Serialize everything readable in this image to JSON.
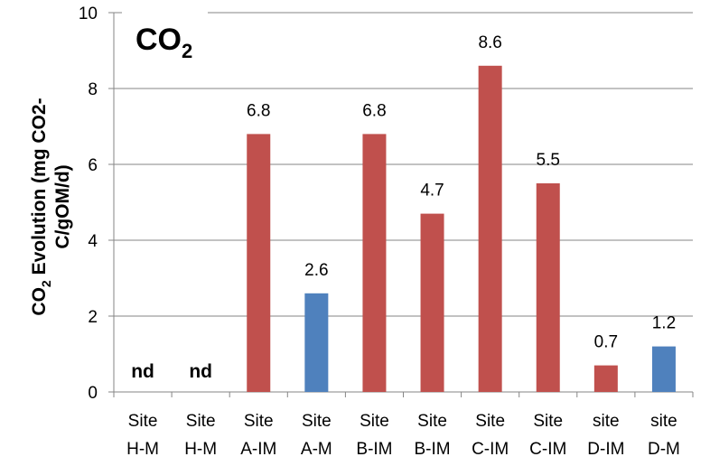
{
  "chart_data": {
    "type": "bar",
    "title": "CO",
    "title_subscript": "2",
    "ylabel_line1_prefix": "CO",
    "ylabel_subscript": "2",
    "ylabel_line1_suffix": " Evolution (mg CO2-",
    "ylabel_line2": "C/gOM/d)",
    "xlabel": "",
    "ylim": [
      0,
      10
    ],
    "yticks": [
      0,
      2,
      4,
      6,
      8,
      10
    ],
    "ytick_labels": [
      "0",
      "2",
      "4",
      "6",
      "8",
      "10"
    ],
    "categories": [
      [
        "Site",
        "H-M"
      ],
      [
        "Site",
        "H-M"
      ],
      [
        "Site",
        "A-IM"
      ],
      [
        "Site",
        "A-M"
      ],
      [
        "Site",
        "B-IM"
      ],
      [
        "Site",
        "B-IM"
      ],
      [
        "Site",
        "C-IM"
      ],
      [
        "Site",
        "C-IM"
      ],
      [
        "site",
        "D-IM"
      ],
      [
        "site",
        "D-M"
      ]
    ],
    "values": [
      null,
      null,
      6.8,
      2.6,
      6.8,
      4.7,
      8.6,
      5.5,
      0.7,
      1.2
    ],
    "data_labels": [
      "nd",
      "nd",
      "6.8",
      "2.6",
      "6.8",
      "4.7",
      "8.6",
      "5.5",
      "0.7",
      "1.2"
    ],
    "bar_colors": [
      "#c0504d",
      "#c0504d",
      "#c0504d",
      "#4f81bd",
      "#c0504d",
      "#c0504d",
      "#c0504d",
      "#c0504d",
      "#c0504d",
      "#4f81bd"
    ],
    "grid": true,
    "legend": "none"
  }
}
